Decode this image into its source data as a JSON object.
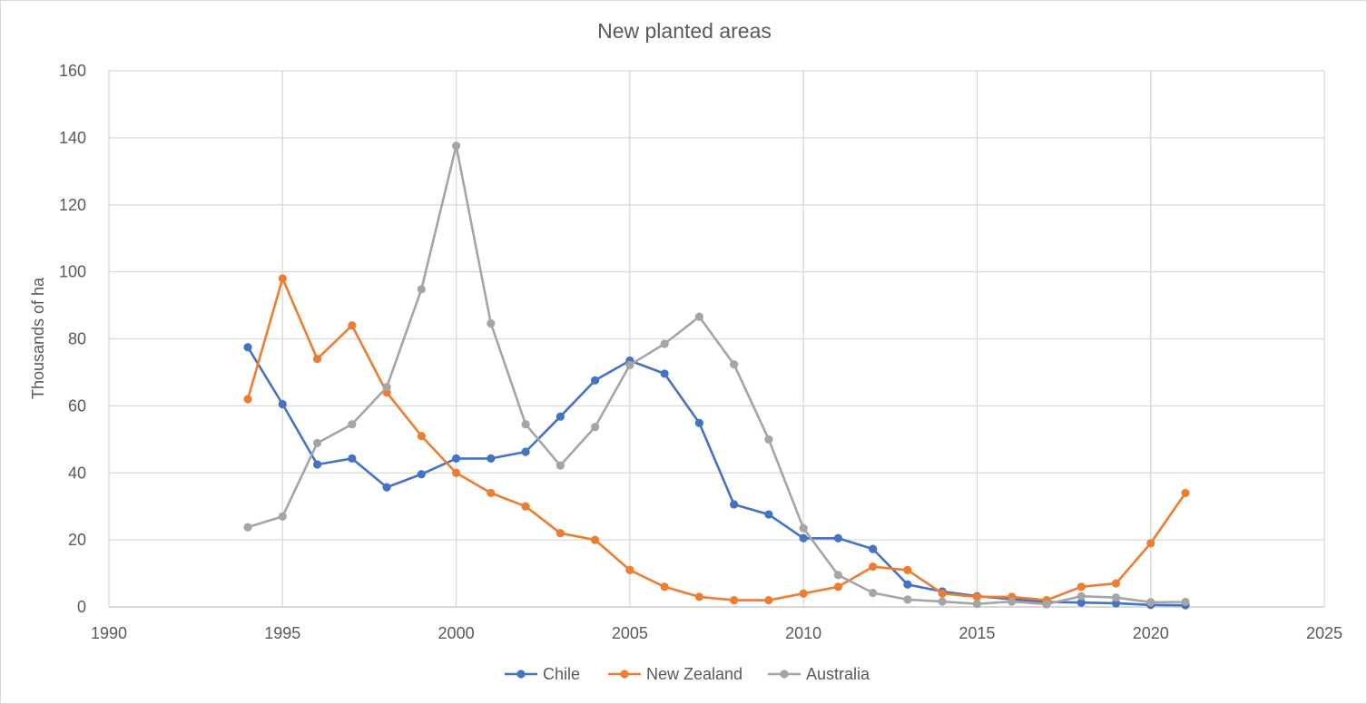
{
  "chart_data": {
    "type": "line",
    "title": "New planted areas",
    "xlabel": "",
    "ylabel": "Thousands of ha",
    "xlim": [
      1990,
      2025
    ],
    "ylim": [
      0,
      160
    ],
    "x_ticks": [
      1990,
      1995,
      2000,
      2005,
      2010,
      2015,
      2020,
      2025
    ],
    "y_ticks": [
      0,
      20,
      40,
      60,
      80,
      100,
      120,
      140,
      160
    ],
    "grid": true,
    "legend_position": "bottom",
    "x": [
      1994,
      1995,
      1996,
      1997,
      1998,
      1999,
      2000,
      2001,
      2002,
      2003,
      2004,
      2005,
      2006,
      2007,
      2008,
      2009,
      2010,
      2011,
      2012,
      2013,
      2014,
      2015,
      2016,
      2017,
      2018,
      2019,
      2020,
      2021
    ],
    "series": [
      {
        "name": "Chile",
        "color": "#4472C4",
        "values": [
          77.5,
          60.5,
          42.5,
          44.3,
          35.7,
          39.6,
          44.3,
          44.3,
          46.3,
          56.8,
          67.6,
          73.5,
          69.6,
          54.9,
          30.6,
          27.6,
          20.5,
          20.5,
          17.3,
          6.7,
          4.6,
          3.2,
          2.3,
          1.5,
          1.3,
          1.1,
          0.6,
          0.5
        ]
      },
      {
        "name": "New Zealand",
        "color": "#ED7D31",
        "values": [
          62.0,
          98.0,
          74.0,
          84.0,
          64.0,
          51.0,
          40.0,
          34.0,
          30.0,
          22.0,
          20.0,
          11.0,
          6.0,
          3.0,
          2.0,
          2.0,
          4.0,
          6.0,
          12.0,
          11.0,
          4.0,
          3.0,
          3.0,
          2.0,
          6.0,
          7.0,
          19.0,
          34.0
        ]
      },
      {
        "name": "Australia",
        "color": "#A5A5A5",
        "values": [
          23.8,
          27.0,
          48.9,
          54.5,
          65.6,
          94.8,
          137.6,
          84.6,
          54.5,
          42.2,
          53.7,
          72.2,
          78.5,
          86.6,
          72.4,
          50.0,
          23.5,
          9.5,
          4.2,
          2.2,
          1.6,
          0.9,
          1.6,
          0.8,
          3.2,
          2.8,
          1.4,
          1.5
        ]
      }
    ]
  }
}
